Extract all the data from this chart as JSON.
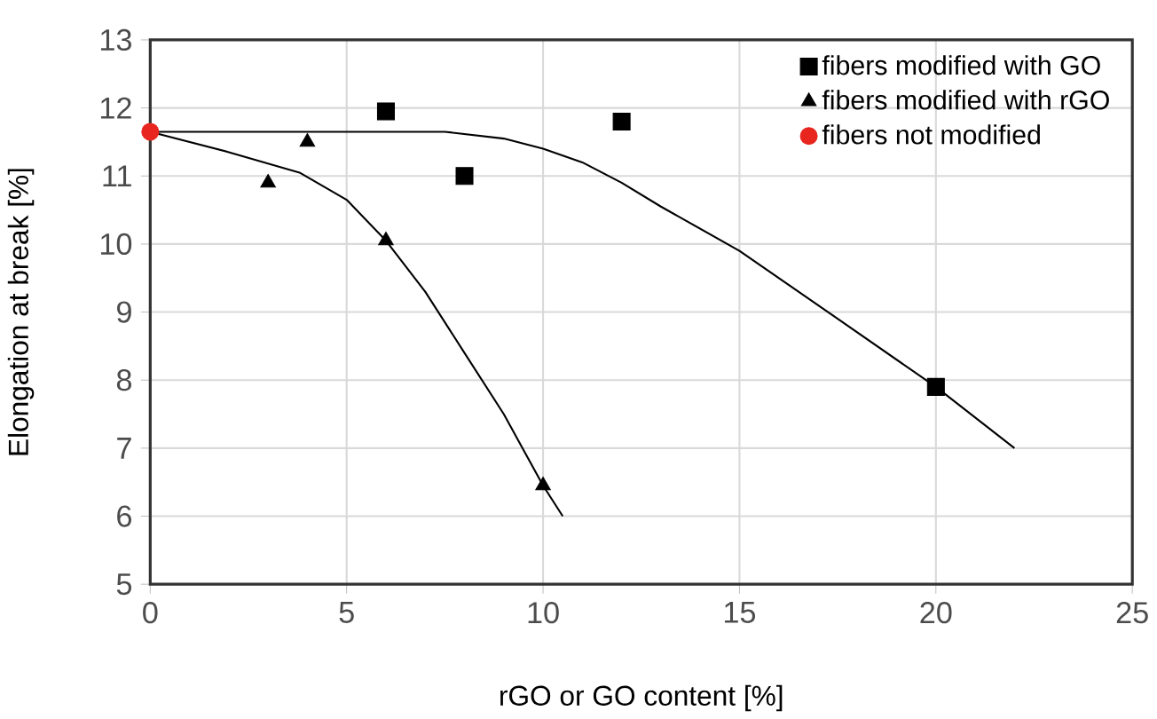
{
  "chart_data": {
    "type": "scatter",
    "xlabel": "rGO or GO content [%]",
    "ylabel": "Elongation at break [%]",
    "xlim": [
      0,
      25
    ],
    "ylim": [
      5,
      13
    ],
    "xticks": [
      0,
      5,
      10,
      15,
      20,
      25
    ],
    "yticks": [
      5,
      6,
      7,
      8,
      9,
      10,
      11,
      12,
      13
    ],
    "grid": true,
    "legend": "top right",
    "series": [
      {
        "name": "fibers modified with GO",
        "marker": "square",
        "color": "#000000",
        "x": [
          6,
          8,
          12,
          20
        ],
        "values": [
          11.95,
          11.0,
          11.8,
          7.9
        ]
      },
      {
        "name": "fibers modified with rGO",
        "marker": "triangle",
        "color": "#000000",
        "x": [
          3,
          4,
          6,
          10
        ],
        "values": [
          10.9,
          11.5,
          10.05,
          6.45
        ]
      },
      {
        "name": "fibers not modified",
        "marker": "circle",
        "color": "#e8251f",
        "x": [
          0
        ],
        "values": [
          11.65
        ]
      },
      {
        "type": "line",
        "marker": "none",
        "color": "#000000",
        "x": [
          0,
          7.5,
          9,
          10,
          11,
          12,
          13,
          15,
          17.5,
          20,
          22
        ],
        "values": [
          11.65,
          11.65,
          11.55,
          11.4,
          11.2,
          10.9,
          10.55,
          9.9,
          8.9,
          7.9,
          7.0
        ]
      },
      {
        "type": "line",
        "marker": "none",
        "color": "#000000",
        "x": [
          0,
          2,
          3.8,
          5,
          6,
          7,
          8,
          9,
          10,
          10.5
        ],
        "values": [
          11.65,
          11.35,
          11.05,
          10.65,
          10.05,
          9.3,
          8.4,
          7.5,
          6.45,
          6.0
        ]
      }
    ]
  }
}
